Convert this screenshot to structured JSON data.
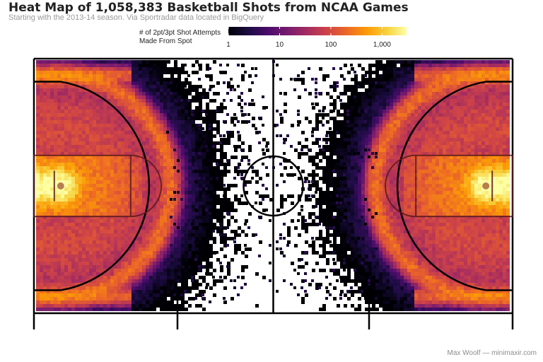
{
  "title": "Heat Map of 1,058,383 Basketball Shots from NCAA Games",
  "subtitle": "Starting with the 2013-14 season. Via Sportradar data located in BigQuery",
  "legend": {
    "title_lines": [
      "# of 2pt/3pt Shot Attempts",
      "Made From Spot"
    ],
    "ticks": [
      {
        "label": "1",
        "value": 1
      },
      {
        "label": "10",
        "value": 10
      },
      {
        "label": "100",
        "value": 100
      },
      {
        "label": "1,000",
        "value": 1000
      }
    ],
    "range": [
      1,
      3000
    ],
    "scale": "log",
    "palette": [
      "#000004",
      "#1b0c41",
      "#4a0c6b",
      "#781c6d",
      "#a52c60",
      "#cf4446",
      "#ed6925",
      "#fb9b06",
      "#f7d13d",
      "#fcffa4"
    ]
  },
  "credit": "Max Woolf — minimaxir.com",
  "chart_data": {
    "type": "heatmap",
    "title": "Heat Map of 1,058,383 Basketball Shots from NCAA Games",
    "subtitle": "Starting with the 2013-14 season. Via Sportradar data located in BigQuery",
    "color_scale": "log",
    "color_range": [
      1,
      3000
    ],
    "legend_title": "# of 2pt/3pt Shot Attempts Made From Spot",
    "legend_ticks": [
      "1",
      "10",
      "100",
      "1,000"
    ],
    "total_shots": 1058383,
    "description_of_density": [
      {
        "region": "under basket (both ends)",
        "count": 3000
      },
      {
        "region": "paint / lane",
        "count": 400
      },
      {
        "region": "mid-range",
        "count": 60
      },
      {
        "region": "three-point arc",
        "count": 150
      },
      {
        "region": "corner threes",
        "count": 200
      },
      {
        "region": "beyond arc near half court",
        "count": 2
      }
    ],
    "grid": false,
    "legend_position": "top"
  }
}
